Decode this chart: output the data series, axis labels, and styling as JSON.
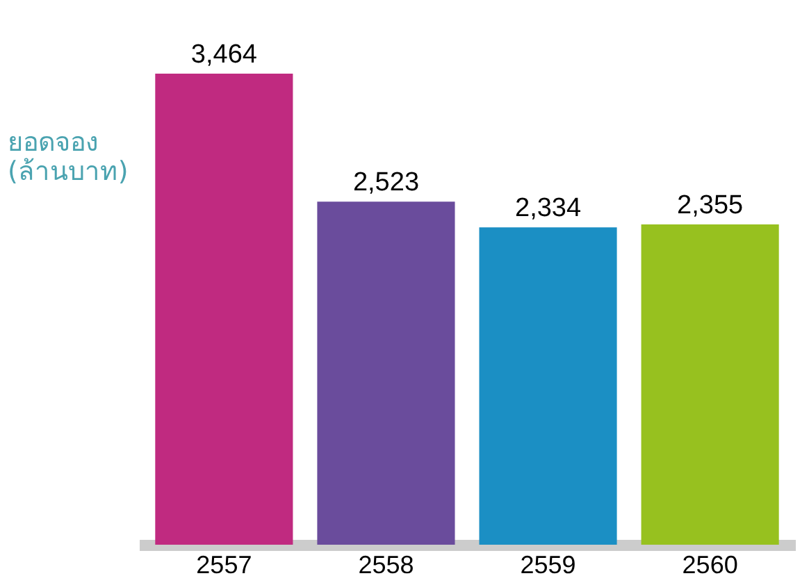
{
  "chart_data": {
    "type": "bar",
    "ylabel": "ยอดจอง (ล้านบาท)",
    "categories": [
      "2557",
      "2558",
      "2559",
      "2560"
    ],
    "values": [
      3464,
      2523,
      2334,
      2355
    ],
    "colors": [
      "#c02a80",
      "#6a4c9c",
      "#1b8fc4",
      "#97c11f"
    ],
    "value_labels": [
      "3,464",
      "2,523",
      "2,334",
      "2,355"
    ],
    "tick_labels": "x",
    "grid": false
  }
}
